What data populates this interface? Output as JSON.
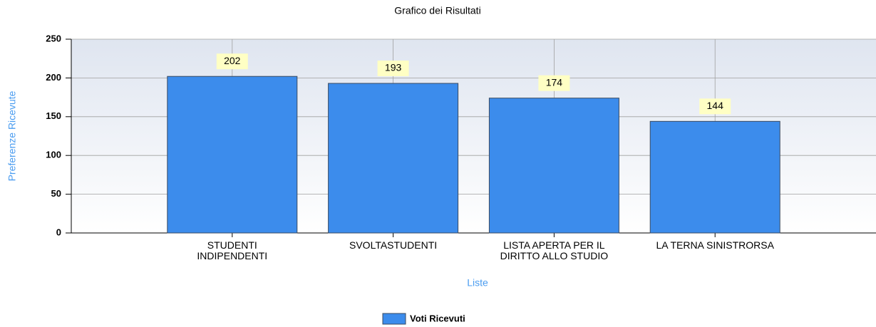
{
  "chart_data": {
    "type": "bar",
    "title": "Grafico dei Risultati",
    "x_label": "Liste",
    "y_label": "Preferenze Ricevute",
    "categories": [
      "STUDENTI\nINDIPENDENTI",
      "SVOLTASTUDENTI",
      "LISTA APERTA PER IL\nDIRITTO ALLO STUDIO",
      "LA TERNA SINISTRORSA"
    ],
    "series": [
      {
        "name": "Voti Ricevuti",
        "color": "#3c8cec",
        "values": [
          202,
          193,
          174,
          144
        ]
      }
    ],
    "ylim": [
      0,
      250
    ],
    "yticks": [
      0,
      50,
      100,
      150,
      200,
      250
    ],
    "grid": true,
    "legend": "bottom"
  }
}
